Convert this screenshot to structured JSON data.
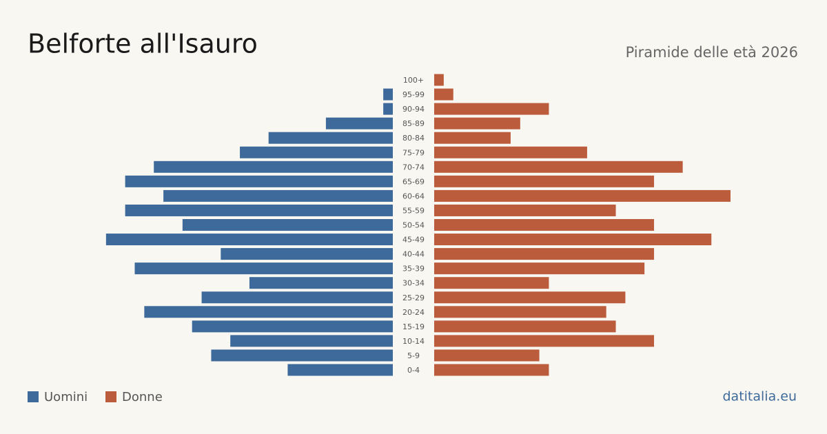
{
  "chart_data": {
    "type": "pyramid",
    "title": "Belforte all'Isauro",
    "subtitle": "Piramide delle età 2026",
    "source": "datitalia.eu",
    "categories": [
      "100+",
      "95-99",
      "90-94",
      "85-89",
      "80-84",
      "75-79",
      "70-74",
      "65-69",
      "60-64",
      "55-59",
      "50-54",
      "45-49",
      "40-44",
      "35-39",
      "30-34",
      "25-29",
      "20-24",
      "15-19",
      "10-14",
      "5-9",
      "0-4"
    ],
    "series": [
      {
        "name": "Uomini",
        "color": "#3d6a9a",
        "values": [
          0,
          1,
          1,
          7,
          13,
          16,
          25,
          28,
          24,
          28,
          22,
          30,
          18,
          27,
          15,
          20,
          26,
          21,
          17,
          19,
          11
        ]
      },
      {
        "name": "Donne",
        "color": "#bb5d3c",
        "values": [
          1,
          2,
          12,
          9,
          8,
          16,
          26,
          23,
          31,
          19,
          23,
          29,
          23,
          22,
          12,
          20,
          18,
          19,
          23,
          11,
          12
        ]
      }
    ]
  }
}
